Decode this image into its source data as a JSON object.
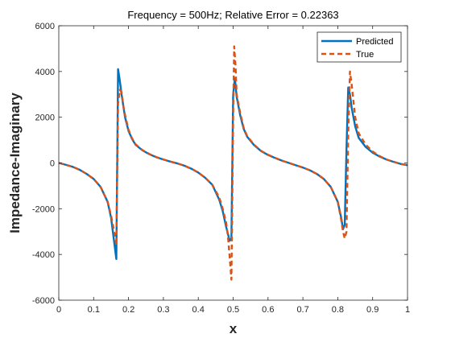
{
  "chart_data": {
    "type": "line",
    "title": "Frequency = 500Hz; Relative Error = 0.22363",
    "xlabel": "x",
    "ylabel": "Impedance-Imaginary",
    "xlim": [
      0,
      1
    ],
    "ylim": [
      -6000,
      6000
    ],
    "xticks": [
      0,
      0.1,
      0.2,
      0.3,
      0.4,
      0.5,
      0.6,
      0.7,
      0.8,
      0.9,
      1
    ],
    "xtick_labels": [
      "0",
      "0.1",
      "0.2",
      "0.3",
      "0.4",
      "0.5",
      "0.6",
      "0.7",
      "0.8",
      "0.9",
      "1"
    ],
    "yticks": [
      -6000,
      -4000,
      -2000,
      0,
      2000,
      4000,
      6000
    ],
    "ytick_labels": [
      "-6000",
      "-4000",
      "-2000",
      "0",
      "2000",
      "4000",
      "6000"
    ],
    "grid": false,
    "legend_position": "top-right",
    "series": [
      {
        "name": "Predicted",
        "color": "#0072BD",
        "style": "solid",
        "x": [
          0,
          0.02,
          0.04,
          0.06,
          0.08,
          0.1,
          0.12,
          0.14,
          0.15,
          0.16,
          0.165,
          0.17,
          0.175,
          0.18,
          0.19,
          0.2,
          0.21,
          0.22,
          0.24,
          0.26,
          0.28,
          0.3,
          0.32,
          0.34,
          0.36,
          0.38,
          0.4,
          0.42,
          0.44,
          0.46,
          0.47,
          0.48,
          0.49,
          0.495,
          0.5,
          0.505,
          0.51,
          0.52,
          0.53,
          0.54,
          0.56,
          0.58,
          0.6,
          0.62,
          0.64,
          0.66,
          0.68,
          0.7,
          0.72,
          0.74,
          0.76,
          0.78,
          0.8,
          0.81,
          0.815,
          0.82,
          0.825,
          0.83,
          0.835,
          0.84,
          0.85,
          0.86,
          0.88,
          0.9,
          0.92,
          0.94,
          0.96,
          0.98,
          1
        ],
        "y": [
          0,
          -80,
          -170,
          -300,
          -480,
          -700,
          -1050,
          -1700,
          -2400,
          -3600,
          -4200,
          4100,
          3600,
          3000,
          2000,
          1400,
          1050,
          800,
          550,
          380,
          250,
          150,
          60,
          -20,
          -120,
          -250,
          -420,
          -650,
          -950,
          -1600,
          -2100,
          -2800,
          -3400,
          -3300,
          3000,
          3700,
          2900,
          2100,
          1500,
          1150,
          780,
          520,
          350,
          220,
          100,
          0,
          -100,
          -200,
          -320,
          -480,
          -700,
          -1050,
          -1700,
          -2400,
          -2900,
          -2700,
          600,
          3300,
          3000,
          2400,
          1600,
          1100,
          700,
          450,
          280,
          150,
          50,
          -40,
          -100
        ]
      },
      {
        "name": "True",
        "color": "#D95319",
        "style": "dashed",
        "x": [
          0,
          0.02,
          0.04,
          0.06,
          0.08,
          0.1,
          0.12,
          0.14,
          0.15,
          0.16,
          0.165,
          0.17,
          0.175,
          0.18,
          0.185,
          0.19,
          0.2,
          0.21,
          0.22,
          0.24,
          0.26,
          0.28,
          0.3,
          0.32,
          0.34,
          0.36,
          0.38,
          0.4,
          0.42,
          0.44,
          0.46,
          0.47,
          0.48,
          0.485,
          0.49,
          0.495,
          0.5,
          0.503,
          0.507,
          0.51,
          0.52,
          0.53,
          0.54,
          0.56,
          0.58,
          0.6,
          0.62,
          0.64,
          0.66,
          0.68,
          0.7,
          0.72,
          0.74,
          0.76,
          0.78,
          0.8,
          0.81,
          0.815,
          0.82,
          0.825,
          0.83,
          0.835,
          0.84,
          0.85,
          0.86,
          0.88,
          0.9,
          0.92,
          0.94,
          0.96,
          0.98,
          1
        ],
        "y": [
          0,
          -80,
          -170,
          -300,
          -480,
          -700,
          -1050,
          -1700,
          -2300,
          -3100,
          -3600,
          2600,
          3200,
          3100,
          2500,
          2100,
          1450,
          1080,
          820,
          560,
          390,
          255,
          155,
          60,
          -20,
          -120,
          -250,
          -420,
          -650,
          -950,
          -1500,
          -2000,
          -2600,
          -3200,
          -4100,
          -5100,
          2000,
          5100,
          4200,
          3000,
          2200,
          1550,
          1180,
          800,
          530,
          360,
          225,
          100,
          0,
          -100,
          -200,
          -320,
          -480,
          -700,
          -1050,
          -1700,
          -2500,
          -3000,
          -3300,
          -3000,
          1200,
          4000,
          3400,
          2000,
          1300,
          800,
          500,
          300,
          150,
          50,
          -40,
          -100
        ]
      }
    ]
  }
}
